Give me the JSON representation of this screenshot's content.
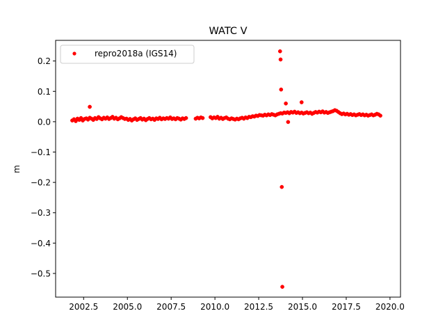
{
  "chart_data": {
    "type": "scatter",
    "title": "WATC V",
    "xlabel": "",
    "ylabel": "m",
    "xlim": [
      2000.9,
      2020.6
    ],
    "ylim": [
      -0.578,
      0.268
    ],
    "xticks": [
      2002.5,
      2005.0,
      2007.5,
      2010.0,
      2012.5,
      2015.0,
      2017.5,
      2020.0
    ],
    "xtick_labels": [
      "2002.5",
      "2005.0",
      "2007.5",
      "2010.0",
      "2012.5",
      "2015.0",
      "2017.5",
      "2020.0"
    ],
    "yticks": [
      0.2,
      0.1,
      0.0,
      -0.1,
      -0.2,
      -0.3,
      -0.4,
      -0.5
    ],
    "ytick_labels": [
      "0.2",
      "0.1",
      "0.0",
      "−0.1",
      "−0.2",
      "−0.3",
      "−0.4",
      "−0.5"
    ],
    "grid": false,
    "legend_position": "top-left",
    "colors": {
      "series": "#ff0000",
      "axes": "#000000",
      "background": "#ffffff"
    },
    "series": [
      {
        "name": "repro2018a (IGS14)",
        "marker": "dot",
        "color": "#ff0000",
        "x": [
          2001.85,
          2001.95,
          2002.05,
          2002.15,
          2002.25,
          2002.35,
          2002.45,
          2002.55,
          2002.65,
          2002.75,
          2002.85,
          2002.95,
          2003.05,
          2003.15,
          2003.25,
          2003.35,
          2003.45,
          2003.55,
          2003.65,
          2003.75,
          2003.85,
          2003.95,
          2004.05,
          2004.15,
          2004.25,
          2004.35,
          2004.45,
          2004.55,
          2004.65,
          2004.75,
          2004.85,
          2004.95,
          2005.05,
          2005.15,
          2005.25,
          2005.35,
          2005.45,
          2005.55,
          2005.65,
          2005.75,
          2005.85,
          2005.95,
          2006.05,
          2006.15,
          2006.25,
          2006.35,
          2006.45,
          2006.55,
          2006.65,
          2006.75,
          2006.85,
          2006.95,
          2007.05,
          2007.15,
          2007.25,
          2007.35,
          2007.45,
          2007.55,
          2007.65,
          2007.75,
          2007.85,
          2007.95,
          2008.05,
          2008.15,
          2008.25,
          2008.35,
          2008.9,
          2009.0,
          2009.1,
          2009.2,
          2009.3,
          2009.75,
          2009.85,
          2009.95,
          2010.05,
          2010.15,
          2010.25,
          2010.35,
          2010.45,
          2010.55,
          2010.65,
          2010.75,
          2010.85,
          2010.95,
          2011.05,
          2011.15,
          2011.25,
          2011.35,
          2011.45,
          2011.55,
          2011.65,
          2011.75,
          2011.85,
          2011.95,
          2012.05,
          2012.15,
          2012.25,
          2012.35,
          2012.45,
          2012.55,
          2012.65,
          2012.75,
          2012.85,
          2012.95,
          2013.05,
          2013.15,
          2013.25,
          2013.35,
          2013.45,
          2013.55,
          2013.65,
          2013.75,
          2013.85,
          2013.95,
          2014.05,
          2014.15,
          2014.25,
          2014.35,
          2014.45,
          2014.55,
          2014.65,
          2014.75,
          2014.85,
          2014.95,
          2015.05,
          2015.15,
          2015.25,
          2015.35,
          2015.45,
          2015.55,
          2015.65,
          2015.75,
          2015.85,
          2015.95,
          2016.05,
          2016.15,
          2016.25,
          2016.35,
          2016.45,
          2016.55,
          2016.65,
          2016.75,
          2016.85,
          2016.95,
          2017.05,
          2017.15,
          2017.25,
          2017.35,
          2017.45,
          2017.55,
          2017.65,
          2017.75,
          2017.85,
          2017.95,
          2018.05,
          2018.15,
          2018.25,
          2018.35,
          2018.45,
          2018.55,
          2018.65,
          2018.75,
          2018.85,
          2018.95,
          2019.05,
          2019.15,
          2019.25,
          2019.35,
          2019.45,
          2002.85,
          2013.72,
          2013.75,
          2013.78,
          2013.82,
          2013.85,
          2014.05,
          2014.18,
          2014.95
        ],
        "y": [
          0.004,
          0.008,
          0.002,
          0.01,
          0.006,
          0.012,
          0.004,
          0.009,
          0.011,
          0.007,
          0.013,
          0.01,
          0.006,
          0.012,
          0.009,
          0.015,
          0.011,
          0.008,
          0.013,
          0.01,
          0.014,
          0.009,
          0.012,
          0.016,
          0.01,
          0.013,
          0.008,
          0.011,
          0.015,
          0.012,
          0.009,
          0.01,
          0.006,
          0.009,
          0.004,
          0.008,
          0.011,
          0.006,
          0.009,
          0.012,
          0.007,
          0.01,
          0.005,
          0.009,
          0.012,
          0.008,
          0.01,
          0.006,
          0.011,
          0.009,
          0.013,
          0.008,
          0.011,
          0.009,
          0.012,
          0.01,
          0.014,
          0.009,
          0.011,
          0.008,
          0.012,
          0.01,
          0.007,
          0.011,
          0.009,
          0.012,
          0.01,
          0.013,
          0.011,
          0.014,
          0.012,
          0.015,
          0.011,
          0.014,
          0.012,
          0.016,
          0.01,
          0.013,
          0.009,
          0.012,
          0.014,
          0.01,
          0.008,
          0.011,
          0.009,
          0.007,
          0.01,
          0.008,
          0.011,
          0.013,
          0.01,
          0.014,
          0.012,
          0.016,
          0.015,
          0.018,
          0.017,
          0.02,
          0.019,
          0.022,
          0.021,
          0.02,
          0.023,
          0.021,
          0.024,
          0.022,
          0.025,
          0.023,
          0.021,
          0.024,
          0.026,
          0.028,
          0.027,
          0.03,
          0.029,
          0.031,
          0.028,
          0.032,
          0.03,
          0.033,
          0.029,
          0.031,
          0.028,
          0.03,
          0.027,
          0.029,
          0.031,
          0.028,
          0.03,
          0.026,
          0.029,
          0.032,
          0.03,
          0.033,
          0.031,
          0.034,
          0.03,
          0.032,
          0.029,
          0.031,
          0.033,
          0.035,
          0.038,
          0.036,
          0.032,
          0.028,
          0.025,
          0.027,
          0.024,
          0.026,
          0.023,
          0.025,
          0.022,
          0.024,
          0.021,
          0.023,
          0.025,
          0.022,
          0.024,
          0.021,
          0.023,
          0.02,
          0.022,
          0.024,
          0.021,
          0.023,
          0.026,
          0.024,
          0.02,
          0.049,
          0.232,
          0.205,
          0.106,
          -0.215,
          -0.544,
          0.06,
          -0.001,
          0.064
        ]
      }
    ]
  }
}
